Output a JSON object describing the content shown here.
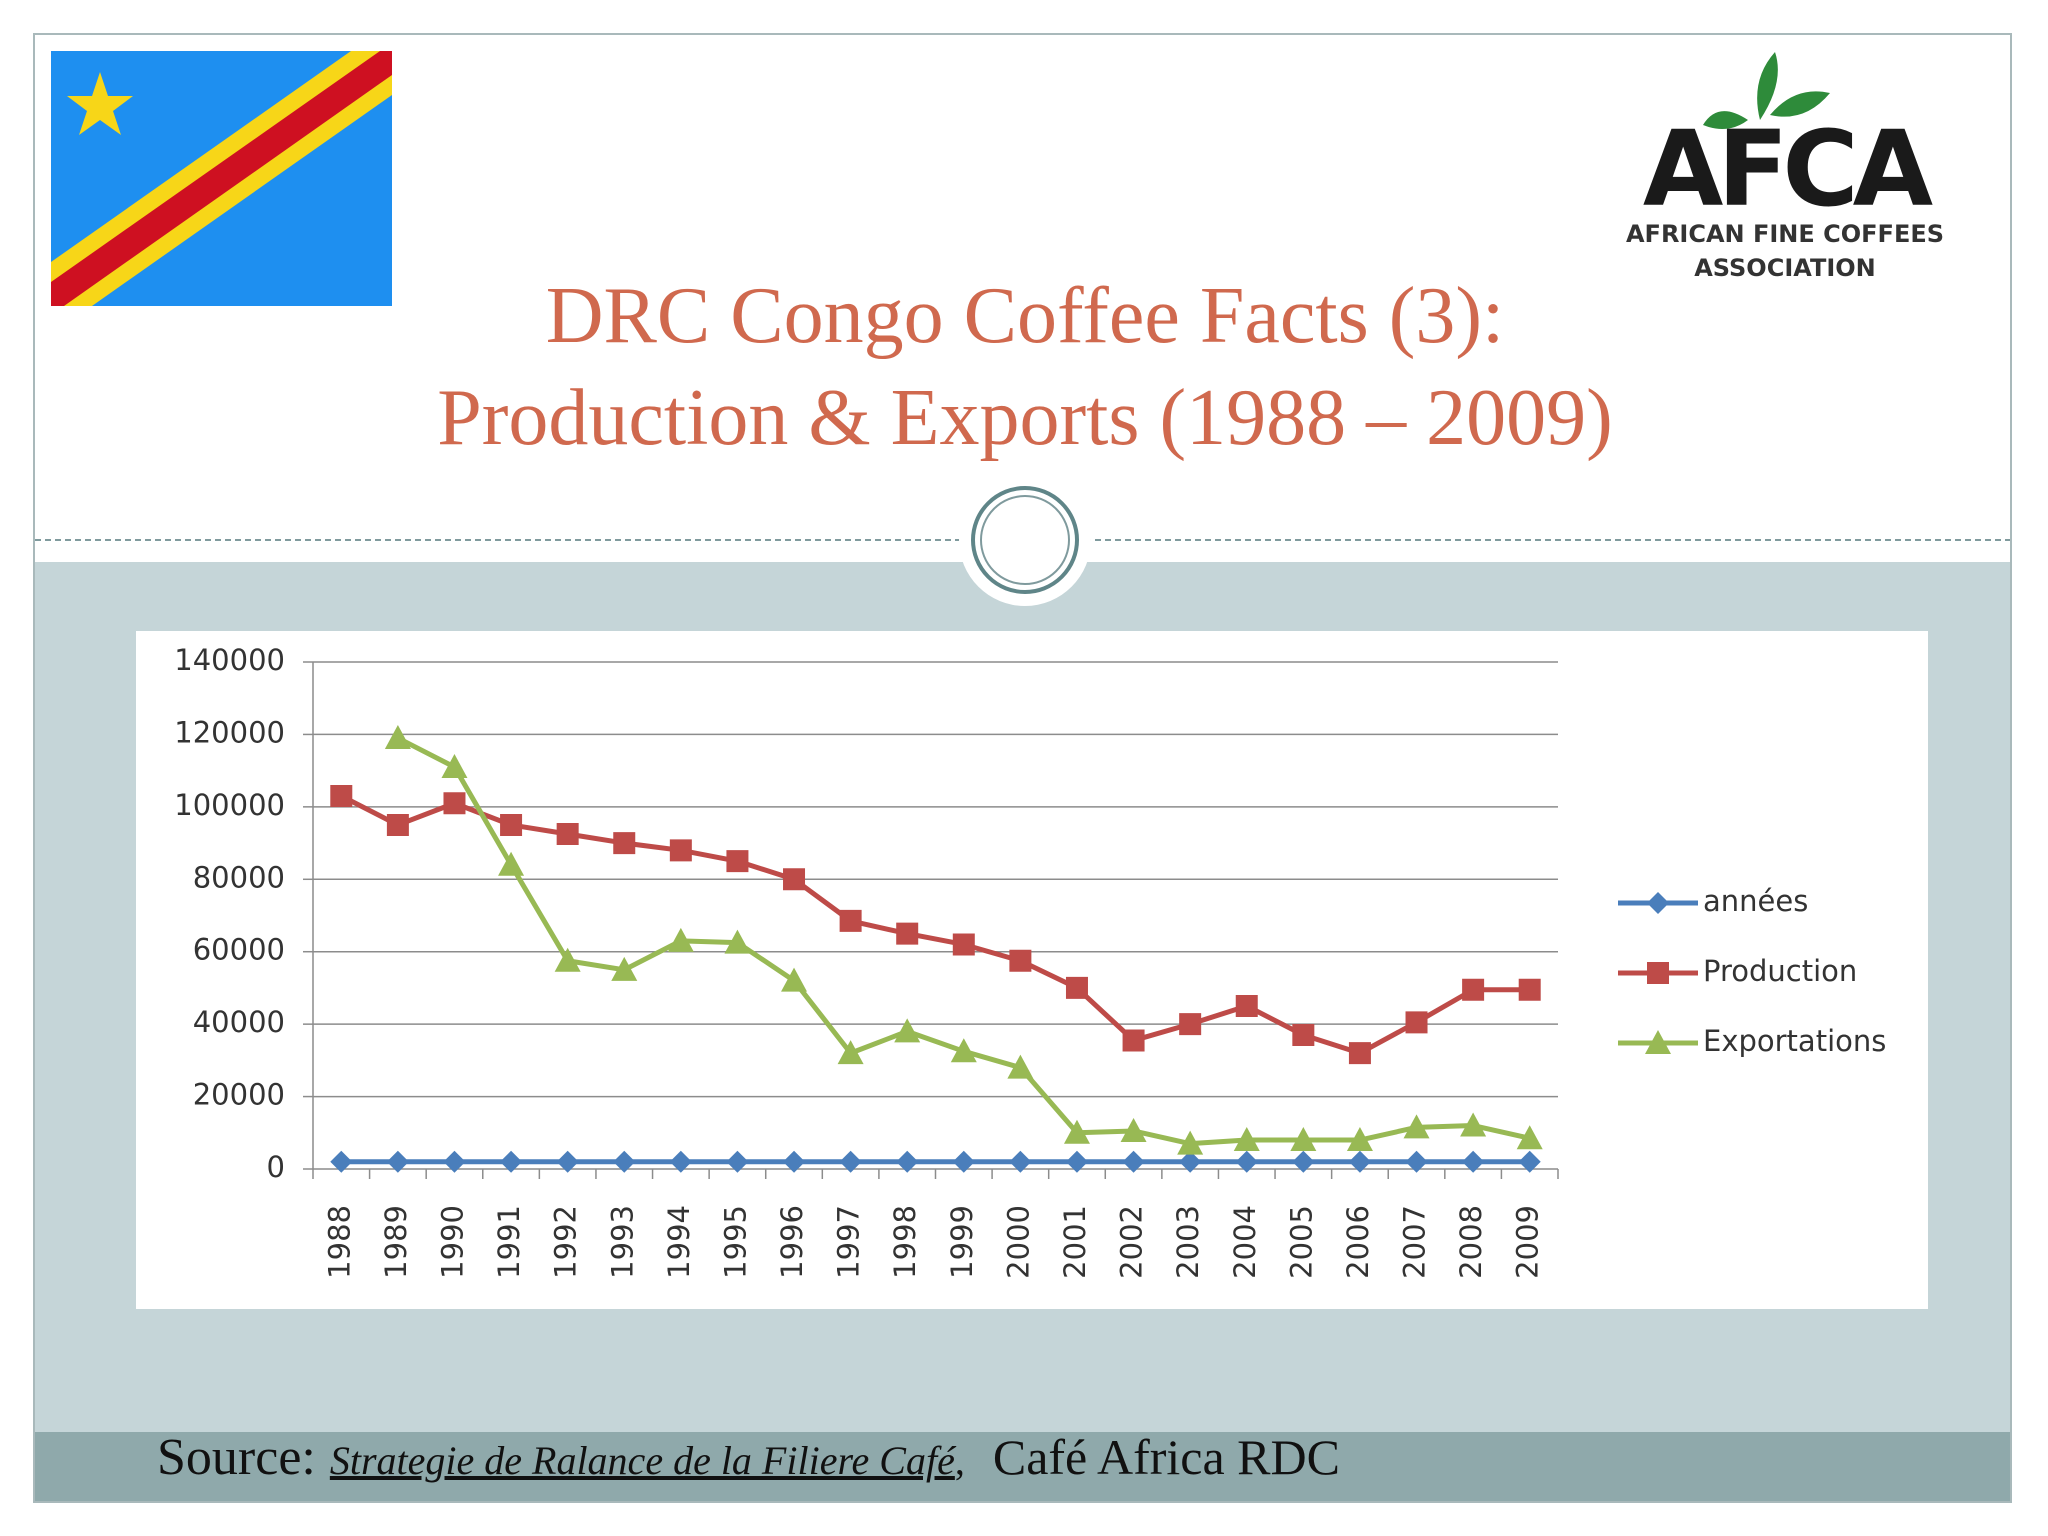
{
  "slide": {
    "title_lines": [
      "DRC Congo Coffee Facts (3):",
      "Production & Exports (1988 – 2009)"
    ],
    "logo": {
      "mark": "AFCA",
      "lines": [
        "AFRICAN FINE COFFEES",
        "ASSOCIATION"
      ]
    },
    "source": {
      "label": "Source:",
      "title": "Strategie de Ralance de la Filiere Café",
      "separator": ",",
      "publisher": "Café Africa RDC"
    }
  },
  "chart_data": {
    "type": "line",
    "categories": [
      "1988",
      "1989",
      "1990",
      "1991",
      "1992",
      "1993",
      "1994",
      "1995",
      "1996",
      "1997",
      "1998",
      "1999",
      "2000",
      "2001",
      "2002",
      "2003",
      "2004",
      "2005",
      "2006",
      "2007",
      "2008",
      "2009"
    ],
    "series": [
      {
        "name": "années",
        "color": "#4a7ebb",
        "marker": "diamond",
        "values": [
          1988,
          1989,
          1990,
          1991,
          1992,
          1993,
          1994,
          1995,
          1996,
          1997,
          1998,
          1999,
          2000,
          2001,
          2002,
          2003,
          2004,
          2005,
          2006,
          2007,
          2008,
          2009
        ]
      },
      {
        "name": "Production",
        "color": "#be4b48",
        "marker": "square",
        "values": [
          103000,
          95000,
          101000,
          95000,
          92500,
          90000,
          88000,
          85000,
          80000,
          68500,
          65000,
          62000,
          57500,
          50000,
          35500,
          40000,
          45000,
          37000,
          32000,
          40500,
          49500,
          49500
        ]
      },
      {
        "name": "Exportations",
        "color": "#98b954",
        "marker": "triangle",
        "values": [
          null,
          119000,
          111000,
          84000,
          57500,
          55000,
          63000,
          62500,
          52000,
          32000,
          38000,
          32500,
          28000,
          10000,
          10500,
          7000,
          8000,
          8000,
          8000,
          11500,
          12000,
          8500
        ]
      }
    ],
    "ylim": [
      0,
      140000
    ],
    "yticks": [
      0,
      20000,
      40000,
      60000,
      80000,
      100000,
      120000,
      140000
    ],
    "grid": true,
    "legend": "right"
  }
}
